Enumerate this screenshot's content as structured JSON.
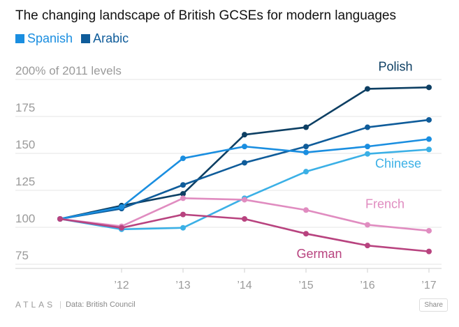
{
  "header": {
    "title": "The changing landscape of British GCSEs for modern languages"
  },
  "legend": [
    {
      "label": "Spanish",
      "color": "#1a8ee0"
    },
    {
      "label": "Arabic",
      "color": "#0f5c9a"
    }
  ],
  "footer": {
    "logo": "ATLAS",
    "source": "Data:  British Council",
    "share_label": "Share"
  },
  "chart_data": {
    "type": "line",
    "ylabel": "200% of 2011 levels",
    "ylim": [
      65,
      200
    ],
    "yticks": [
      75,
      100,
      125,
      150,
      175
    ],
    "x": [
      2011,
      2012,
      2013,
      2014,
      2015,
      2016,
      2017
    ],
    "xtick_labels": [
      "’12",
      "’13",
      "’14",
      "’15",
      "’16",
      "’17"
    ],
    "grid": true,
    "legend_position": "top-left",
    "series": [
      {
        "name": "Polish",
        "color": "#0d3f63",
        "label_visible": true,
        "values": [
          100,
          109,
          117,
          157,
          162,
          188,
          189
        ]
      },
      {
        "name": "Arabic",
        "color": "#0f5c9a",
        "label_visible": false,
        "values": [
          100,
          107,
          123,
          138,
          149,
          162,
          167
        ]
      },
      {
        "name": "Spanish",
        "color": "#1a8ee0",
        "label_visible": false,
        "values": [
          100,
          108,
          141,
          149,
          145,
          149,
          154
        ]
      },
      {
        "name": "Chinese",
        "color": "#3bb0e6",
        "label_visible": true,
        "values": [
          100,
          93,
          94,
          114,
          132,
          144,
          147
        ]
      },
      {
        "name": "French",
        "color": "#e08cc0",
        "label_visible": true,
        "values": [
          100,
          95,
          114,
          113,
          106,
          96,
          92
        ]
      },
      {
        "name": "German",
        "color": "#b8437f",
        "label_visible": true,
        "values": [
          100,
          94,
          103,
          100,
          90,
          82,
          78
        ]
      }
    ]
  }
}
